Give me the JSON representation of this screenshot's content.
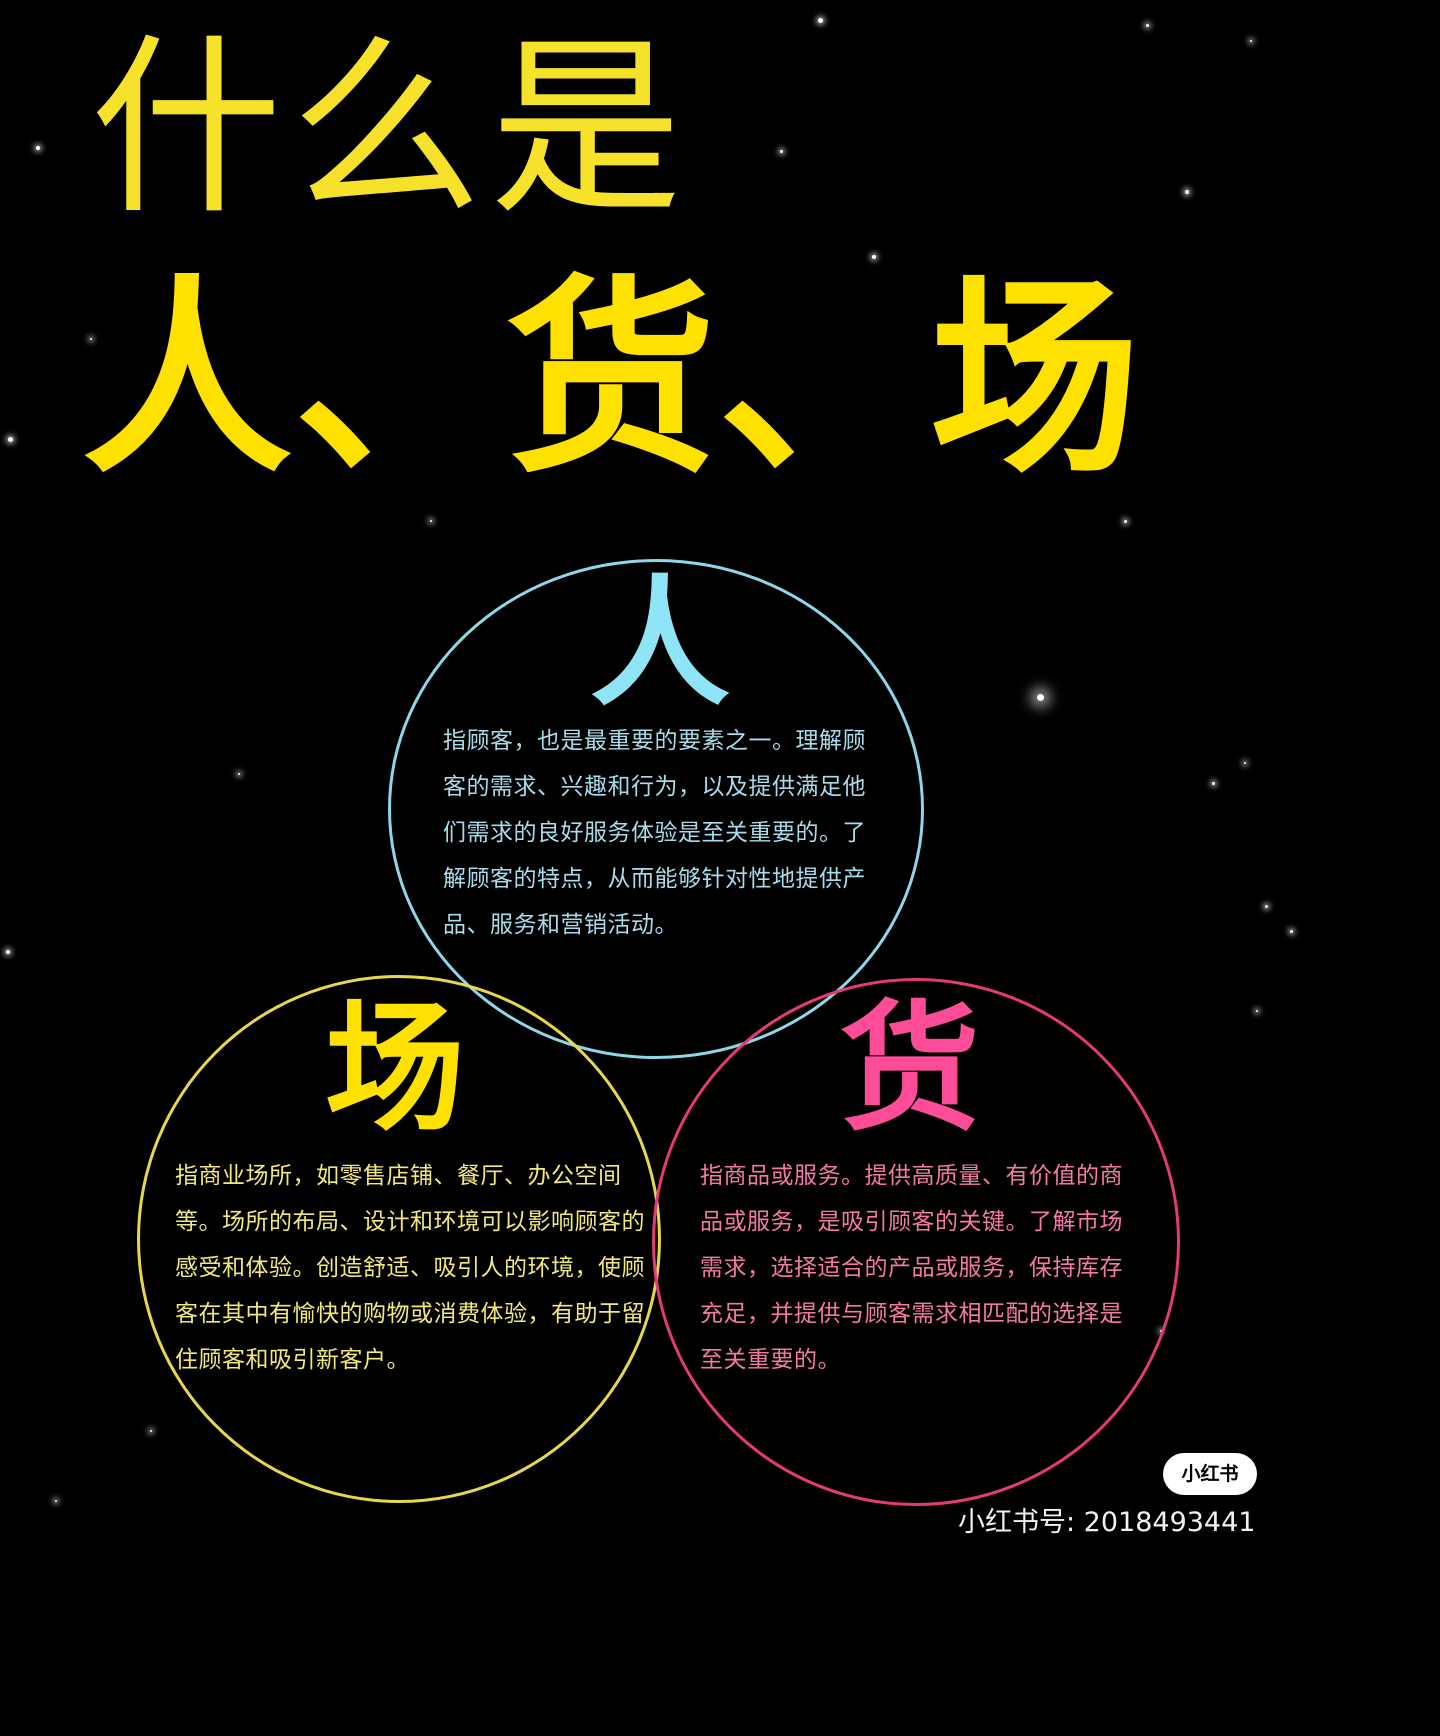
{
  "header": {
    "title_top": "什么是",
    "title_main": "人、货、场"
  },
  "diagram": {
    "ren": {
      "label": "人",
      "description": "指顾客，也是最重要的要素之一。理解顾客的需求、兴趣和行为，以及提供满足他们需求的良好服务体验是至关重要的。了解顾客的特点，从而能够针对性地提供产品、服务和营销活动。",
      "color": "#8fe4f6"
    },
    "chang": {
      "label": "场",
      "description": "指商业场所，如零售店铺、餐厅、办公空间等。场所的布局、设计和环境可以影响顾客的感受和体验。创造舒适、吸引人的环境，使顾客在其中有愉快的购物或消费体验，有助于留住顾客和吸引新客户。",
      "color": "#ffe100"
    },
    "huo": {
      "label": "货",
      "description": "指商品或服务。提供高质量、有价值的商品或服务，是吸引顾客的关键。了解市场需求，选择适合的产品或服务，保持库存充足，并提供与顾客需求相匹配的选择是至关重要的。",
      "color": "#ff4c98"
    }
  },
  "watermark": {
    "logo_text": "小红书",
    "account": "小红书号: 2018493441"
  }
}
